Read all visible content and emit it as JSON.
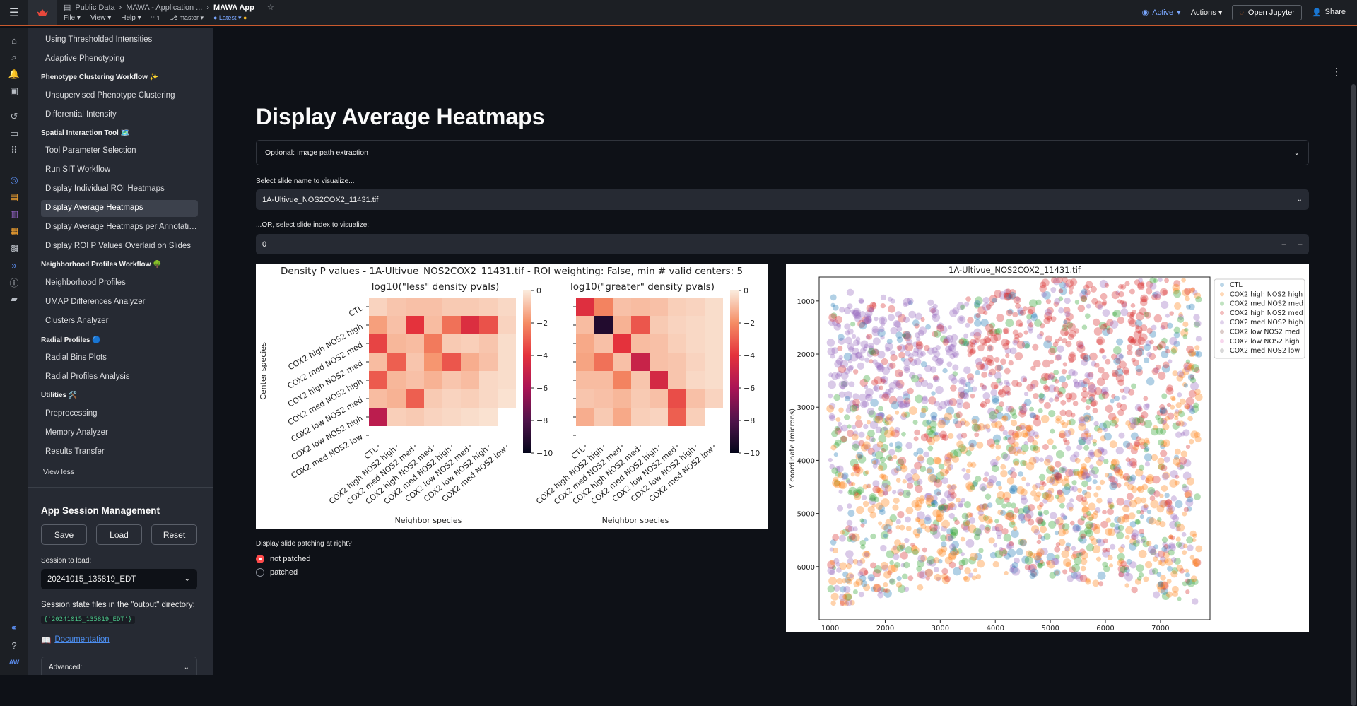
{
  "topbar": {
    "breadcrumb": [
      "Public Data",
      "MAWA - Application ...",
      "MAWA App"
    ],
    "menus": [
      "File",
      "View",
      "Help"
    ],
    "counter": "1",
    "branch": "master",
    "version": "Latest",
    "status": "Active",
    "actions": "Actions",
    "open_jupyter": "Open Jupyter",
    "share": "Share"
  },
  "sidebar": {
    "items": [
      {
        "type": "link",
        "label": "Using Thresholded Intensities"
      },
      {
        "type": "link",
        "label": "Adaptive Phenotyping"
      },
      {
        "type": "head",
        "label": "Phenotype Clustering Workflow ✨"
      },
      {
        "type": "link",
        "label": "Unsupervised Phenotype Clustering"
      },
      {
        "type": "link",
        "label": "Differential Intensity"
      },
      {
        "type": "head",
        "label": "Spatial Interaction Tool 🗺️"
      },
      {
        "type": "link",
        "label": "Tool Parameter Selection"
      },
      {
        "type": "link",
        "label": "Run SIT Workflow"
      },
      {
        "type": "link",
        "label": "Display Individual ROI Heatmaps"
      },
      {
        "type": "link",
        "label": "Display Average Heatmaps",
        "selected": true
      },
      {
        "type": "link",
        "label": "Display Average Heatmaps per Annotati…"
      },
      {
        "type": "link",
        "label": "Display ROI P Values Overlaid on Slides"
      },
      {
        "type": "head",
        "label": "Neighborhood Profiles Workflow 🌳"
      },
      {
        "type": "link",
        "label": "Neighborhood Profiles"
      },
      {
        "type": "link",
        "label": "UMAP Differences Analyzer"
      },
      {
        "type": "link",
        "label": "Clusters Analyzer"
      },
      {
        "type": "head",
        "label": "Radial Profiles 🔵"
      },
      {
        "type": "link",
        "label": "Radial Bins Plots"
      },
      {
        "type": "link",
        "label": "Radial Profiles Analysis"
      },
      {
        "type": "head",
        "label": "Utilities 🛠️"
      },
      {
        "type": "link",
        "label": "Preprocessing"
      },
      {
        "type": "link",
        "label": "Memory Analyzer"
      },
      {
        "type": "link",
        "label": "Results Transfer"
      }
    ],
    "view_less": "View less",
    "session_title": "App Session Management",
    "save": "Save",
    "load": "Load",
    "reset": "Reset",
    "session_label": "Session to load:",
    "session_value": "20241015_135819_EDT",
    "state_files_label": "Session state files in the \"output\" directory:",
    "state_files_value": "{'20241015_135819_EDT'}",
    "doc_link": "Documentation",
    "advanced": "Advanced:"
  },
  "main": {
    "title": "Display Average Heatmaps",
    "expander": "Optional: Image path extraction",
    "slide_name_label": "Select slide name to visualize...",
    "slide_name_value": "1A-Ultivue_NOS2COX2_11431.tif",
    "slide_index_label": "...OR, select slide index to visualize:",
    "slide_index_value": "0",
    "radio_label": "Display slide patching at right?",
    "radio_options": [
      "not patched",
      "patched"
    ]
  },
  "chart_data": [
    {
      "type": "heatmap",
      "title": "Density P values - 1A-Ultivue_NOS2COX2_11431.tif - ROI weighting: False, min # valid centers: 5",
      "panels": [
        {
          "subtitle": "log10(\"less\" density pvals)",
          "ylabel": "Center species",
          "xlabel": "Neighbor species",
          "rows": [
            "CTL",
            "COX2 high NOS2 high",
            "COX2 med NOS2 med",
            "COX2 high NOS2 med",
            "COX2 med NOS2 high",
            "COX2 low NOS2 med",
            "COX2 low NOS2 high",
            "COX2 med NOS2 low"
          ],
          "cols": [
            "CTL",
            "COX2 high NOS2 high",
            "COX2 med NOS2 med",
            "COX2 high NOS2 med",
            "COX2 med NOS2 high",
            "COX2 low NOS2 med",
            "COX2 low NOS2 high",
            "COX2 med NOS2 low"
          ],
          "values": [
            [
              -0.5,
              -0.8,
              -0.9,
              -0.9,
              -0.7,
              -0.7,
              -0.6,
              -0.4
            ],
            [
              -1.6,
              -0.9,
              -4.0,
              -1.0,
              -2.6,
              -4.3,
              -3.3,
              -0.5
            ],
            [
              -3.6,
              -1.1,
              -1.0,
              -2.4,
              -0.7,
              -0.6,
              -0.8,
              -0.3
            ],
            [
              -1.0,
              -3.0,
              -0.8,
              -1.8,
              -3.2,
              -1.3,
              -0.9,
              -0.3
            ],
            [
              -3.1,
              -1.1,
              -0.9,
              -1.2,
              -0.8,
              -1.0,
              -0.4,
              -0.3
            ],
            [
              -1.0,
              -1.2,
              -3.0,
              -0.7,
              -0.5,
              -0.6,
              -0.4,
              -0.2
            ],
            [
              -5.4,
              -0.6,
              -0.7,
              -0.5,
              -0.4,
              -0.3,
              -0.2,
              null
            ],
            [
              null,
              null,
              null,
              null,
              null,
              null,
              null,
              null
            ]
          ],
          "colorbar": {
            "min": -10,
            "max": 0,
            "ticks": [
              0,
              -2,
              -4,
              -6,
              -8,
              -10
            ]
          }
        },
        {
          "subtitle": "log10(\"greater\" density pvals)",
          "xlabel": "Neighbor species",
          "rows": [
            "CTL",
            "COX2 high NOS2 high",
            "COX2 med NOS2 med",
            "COX2 high NOS2 med",
            "COX2 med NOS2 high",
            "COX2 low NOS2 med",
            "COX2 low NOS2 high",
            "COX2 med NOS2 low"
          ],
          "cols": [
            "CTL",
            "COX2 high NOS2 high",
            "COX2 med NOS2 med",
            "COX2 high NOS2 med",
            "COX2 med NOS2 high",
            "COX2 low NOS2 med",
            "COX2 low NOS2 high",
            "COX2 med NOS2 low"
          ],
          "values": [
            [
              -4.2,
              -2.2,
              -0.9,
              -1.0,
              -0.9,
              -0.6,
              -0.5,
              -0.3
            ],
            [
              -1.0,
              -9.2,
              -1.2,
              -3.2,
              -0.7,
              -0.5,
              -0.4,
              -0.3
            ],
            [
              -1.4,
              -0.9,
              -4.0,
              -1.0,
              -0.9,
              -0.6,
              -0.4,
              -0.3
            ],
            [
              -1.5,
              -2.6,
              -0.9,
              -5.0,
              -0.9,
              -0.8,
              -0.5,
              -0.3
            ],
            [
              -1.0,
              -1.0,
              -2.2,
              -0.8,
              -4.6,
              -0.8,
              -0.4,
              -0.3
            ],
            [
              -0.8,
              -0.9,
              -1.1,
              -0.7,
              -0.9,
              -3.4,
              -0.9,
              -0.5
            ],
            [
              -1.3,
              -0.7,
              -1.4,
              -0.6,
              -0.5,
              -3.0,
              -0.6,
              null
            ],
            [
              null,
              null,
              null,
              null,
              null,
              null,
              null,
              null
            ]
          ],
          "colorbar": {
            "min": -10,
            "max": 0,
            "ticks": [
              0,
              -2,
              -4,
              -6,
              -8,
              -10
            ]
          }
        }
      ]
    },
    {
      "type": "scatter",
      "title": "1A-Ultivue_NOS2COX2_11431.tif",
      "xlabel": "X coordinate (microns)",
      "ylabel": "Y coordinate (microns)",
      "xlim": [
        800,
        7900
      ],
      "ylim": [
        7000,
        550
      ],
      "xticks": [
        1000,
        2000,
        3000,
        4000,
        5000,
        6000,
        7000
      ],
      "yticks": [
        1000,
        2000,
        3000,
        4000,
        5000,
        6000
      ],
      "legend": "top-right",
      "series": [
        {
          "name": "CTL",
          "color": "#1f77b4"
        },
        {
          "name": "COX2 high NOS2 high",
          "color": "#ff7f0e"
        },
        {
          "name": "COX2 med NOS2 med",
          "color": "#2ca02c"
        },
        {
          "name": "COX2 high NOS2 med",
          "color": "#d62728"
        },
        {
          "name": "COX2 med NOS2 high",
          "color": "#9467bd"
        },
        {
          "name": "COX2 low NOS2 med",
          "color": "#8c564b"
        },
        {
          "name": "COX2 low NOS2 high",
          "color": "#e377c2"
        },
        {
          "name": "COX2 med NOS2 low",
          "color": "#7f7f7f"
        }
      ]
    }
  ]
}
